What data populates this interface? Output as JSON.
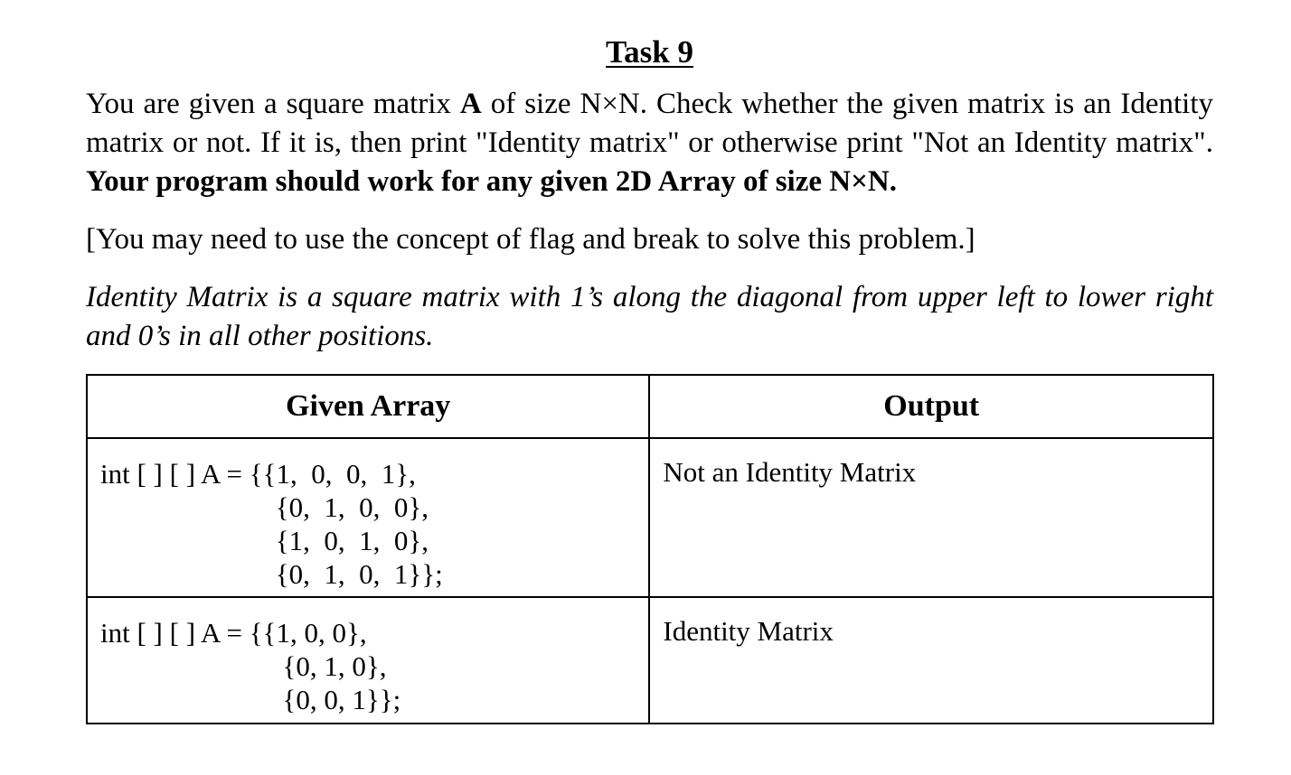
{
  "task": {
    "title": "Task 9",
    "para1_part1": "You are given a square matrix ",
    "para1_A": "A",
    "para1_part2": " of size N×N. Check whether the given matrix is an Identity matrix or not. If it is, then print \"Identity matrix\" or otherwise print \"Not an Identity matrix\". ",
    "para1_bold": "Your program should work for any given 2D Array of size N×N.",
    "para2": "[You may need to use the concept of flag and break to solve this problem.]",
    "para3": "Identity Matrix is a square matrix with 1’s along the diagonal from upper left to lower right and 0’s in all other positions."
  },
  "table": {
    "headers": [
      "Given Array",
      "Output"
    ],
    "rows": [
      {
        "array_lines": [
          "int [ ] [ ] A = {{1,  0,  0,  1},",
          "                         {0,  1,  0,  0},",
          "                         {1,  0,  1,  0},",
          "                         {0,  1,  0,  1}};"
        ],
        "output": "Not an Identity Matrix"
      },
      {
        "array_lines": [
          "int [ ] [ ] A = {{1, 0, 0},",
          "                          {0, 1, 0},",
          "                          {0, 0, 1}};"
        ],
        "output": "Identity Matrix"
      }
    ]
  }
}
